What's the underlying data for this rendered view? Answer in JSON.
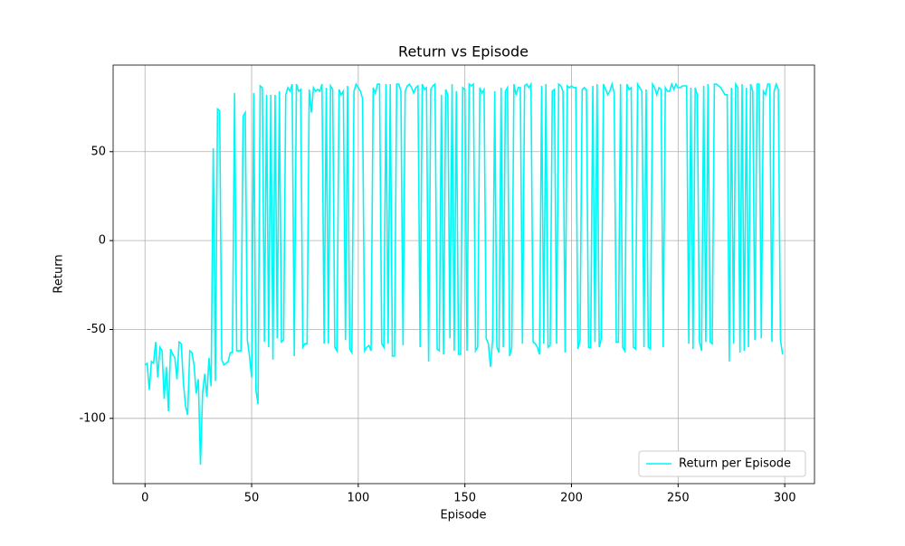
{
  "chart_data": {
    "type": "line",
    "title": "Return vs Episode",
    "xlabel": "Episode",
    "ylabel": "Return",
    "x": [
      0,
      1,
      2,
      3,
      4,
      5,
      6,
      7,
      8,
      9,
      10,
      11,
      12,
      13,
      14,
      15,
      16,
      17,
      18,
      19,
      20,
      21,
      22,
      23,
      24,
      25,
      26,
      27,
      28,
      29,
      30,
      31,
      32,
      33,
      34,
      35,
      36,
      37,
      38,
      39,
      40,
      41,
      42,
      43,
      44,
      45,
      46,
      47,
      48,
      49,
      50,
      51,
      52,
      53,
      54,
      55,
      56,
      57,
      58,
      59,
      60,
      61,
      62,
      63,
      64,
      65,
      66,
      67,
      68,
      69,
      70,
      71,
      72,
      73,
      74,
      75,
      76,
      77,
      78,
      79,
      80,
      81,
      82,
      83,
      84,
      85,
      86,
      87,
      88,
      89,
      90,
      91,
      92,
      93,
      94,
      95,
      96,
      97,
      98,
      99,
      100,
      101,
      102,
      103,
      104,
      105,
      106,
      107,
      108,
      109,
      110,
      111,
      112,
      113,
      114,
      115,
      116,
      117,
      118,
      119,
      120,
      121,
      122,
      123,
      124,
      125,
      126,
      127,
      128,
      129,
      130,
      131,
      132,
      133,
      134,
      135,
      136,
      137,
      138,
      139,
      140,
      141,
      142,
      143,
      144,
      145,
      146,
      147,
      148,
      149,
      150,
      151,
      152,
      153,
      154,
      155,
      156,
      157,
      158,
      159,
      160,
      161,
      162,
      163,
      164,
      165,
      166,
      167,
      168,
      169,
      170,
      171,
      172,
      173,
      174,
      175,
      176,
      177,
      178,
      179,
      180,
      181,
      182,
      183,
      184,
      185,
      186,
      187,
      188,
      189,
      190,
      191,
      192,
      193,
      194,
      195,
      196,
      197,
      198,
      199,
      200,
      201,
      202,
      203,
      204,
      205,
      206,
      207,
      208,
      209,
      210,
      211,
      212,
      213,
      214,
      215,
      216,
      217,
      218,
      219,
      220,
      221,
      222,
      223,
      224,
      225,
      226,
      227,
      228,
      229,
      230,
      231,
      232,
      233,
      234,
      235,
      236,
      237,
      238,
      239,
      240,
      241,
      242,
      243,
      244,
      245,
      246,
      247,
      248,
      249,
      250,
      251,
      252,
      253,
      254,
      255,
      256,
      257,
      258,
      259,
      260,
      261,
      262,
      263,
      264,
      265,
      266,
      267,
      268,
      269,
      270,
      271,
      272,
      273,
      274,
      275,
      276,
      277,
      278,
      279,
      280,
      281,
      282,
      283,
      284,
      285,
      286,
      287,
      288,
      289,
      290,
      291,
      292,
      293,
      294,
      295,
      296,
      297,
      298,
      299
    ],
    "series": [
      {
        "name": "Return per Episode",
        "color": "#00f5f5",
        "values": [
          -70,
          -69,
          -84,
          -68,
          -69,
          -57,
          -77,
          -60,
          -62,
          -89,
          -71,
          -96,
          -61,
          -64,
          -66,
          -78,
          -57,
          -58,
          -80,
          -93,
          -98,
          -62,
          -63,
          -70,
          -86,
          -78,
          -126,
          -86,
          -75,
          -88,
          -66,
          -82,
          52,
          -79,
          74,
          73,
          -67,
          -70,
          -69,
          -68,
          -63,
          -63,
          83,
          -62,
          -62,
          -62,
          70,
          72,
          -56,
          -65,
          -77,
          83,
          -84,
          -92,
          87,
          86,
          -57,
          82,
          -60,
          82,
          -67,
          82,
          -55,
          84,
          -57,
          -56,
          82,
          86,
          84,
          88,
          -65,
          88,
          84,
          85,
          -60,
          -58,
          -58,
          85,
          72,
          86,
          84,
          85,
          84,
          88,
          -58,
          86,
          -58,
          87,
          85,
          -60,
          -62,
          85,
          82,
          84,
          -56,
          87,
          -61,
          -63,
          84,
          88,
          86,
          84,
          80,
          -62,
          -60,
          -59,
          -62,
          86,
          83,
          88,
          88,
          -58,
          -60,
          88,
          -58,
          88,
          -65,
          -65,
          88,
          88,
          84,
          -59,
          84,
          87,
          88,
          86,
          83,
          86,
          87,
          -60,
          88,
          85,
          86,
          -68,
          85,
          87,
          88,
          -61,
          -62,
          82,
          -64,
          85,
          82,
          -55,
          88,
          -62,
          84,
          -64,
          -64,
          86,
          85,
          -62,
          88,
          87,
          88,
          -62,
          -60,
          86,
          83,
          85,
          -55,
          -58,
          -71,
          -56,
          84,
          -60,
          -63,
          86,
          -60,
          84,
          86,
          -65,
          -60,
          88,
          82,
          86,
          86,
          -58,
          87,
          88,
          86,
          88,
          -57,
          -58,
          -60,
          -64,
          87,
          -58,
          88,
          -60,
          -59,
          84,
          85,
          -58,
          88,
          87,
          84,
          -63,
          87,
          86,
          87,
          86,
          86,
          -61,
          -56,
          85,
          86,
          85,
          -60,
          -60,
          87,
          -57,
          88,
          -60,
          -55,
          88,
          85,
          82,
          84,
          88,
          83,
          -57,
          -57,
          88,
          -60,
          -62,
          88,
          85,
          86,
          -60,
          -61,
          88,
          86,
          84,
          -60,
          85,
          -60,
          -61,
          88,
          86,
          82,
          86,
          85,
          -60,
          86,
          84,
          84,
          88,
          85,
          88,
          86,
          86,
          87,
          87,
          87,
          -58,
          86,
          -61,
          86,
          82,
          -57,
          -62,
          87,
          -57,
          88,
          -57,
          -58,
          88,
          88,
          87,
          86,
          84,
          82,
          82,
          -68,
          86,
          -58,
          88,
          86,
          -63,
          88,
          -62,
          86,
          -60,
          88,
          84,
          -56,
          88,
          88,
          -55,
          84,
          82,
          88,
          88,
          -57,
          84,
          88,
          85,
          -56,
          -64
        ]
      }
    ],
    "xlim": [
      -14.95,
      313.95
    ],
    "ylim": [
      -136.7,
      98.7
    ],
    "xticks": [
      0,
      50,
      100,
      150,
      200,
      250,
      300
    ],
    "yticks": [
      -100,
      -50,
      0,
      50
    ],
    "grid": true,
    "legend": "lower right"
  }
}
